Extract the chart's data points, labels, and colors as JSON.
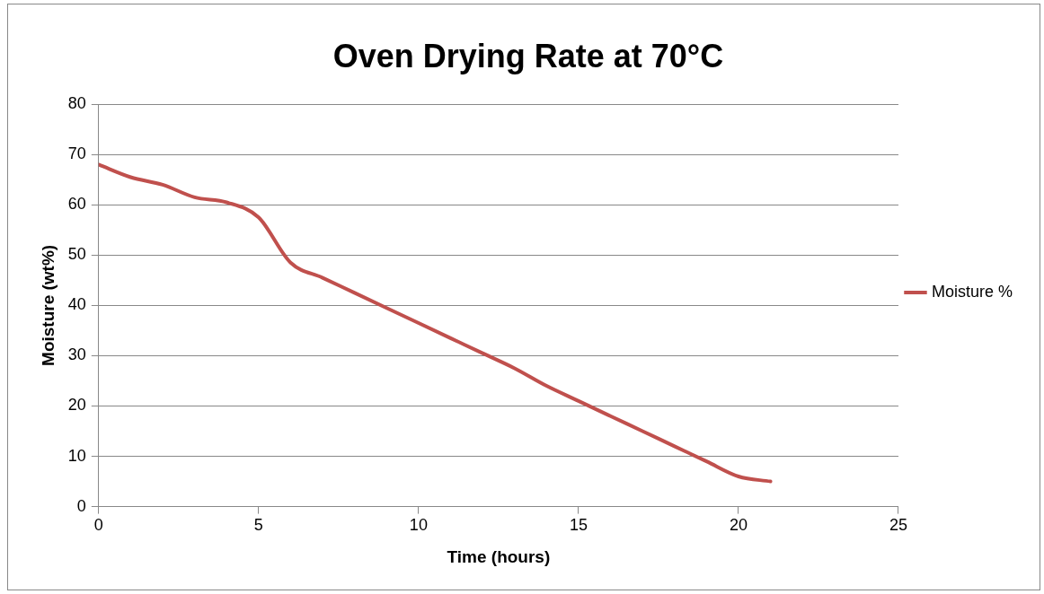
{
  "chart_data": {
    "type": "line",
    "title": "Oven Drying Rate at 70°C",
    "xlabel": "Time (hours)",
    "ylabel": "Moisture (wt%)",
    "xlim": [
      0,
      25
    ],
    "xticks": [
      0,
      5,
      10,
      15,
      20,
      25
    ],
    "ylim": [
      0,
      80
    ],
    "yticks": [
      0,
      10,
      20,
      30,
      40,
      50,
      60,
      70,
      80
    ],
    "grid": "y",
    "legend": "right",
    "marker": "none",
    "series": [
      {
        "name": "Moisture %",
        "color": "#c0504d",
        "x": [
          0,
          1,
          2,
          3,
          4,
          5,
          6,
          7,
          8,
          9,
          10,
          11,
          12,
          13,
          14,
          15,
          16,
          17,
          18,
          19,
          20,
          21
        ],
        "values": [
          68,
          65.5,
          64,
          61.5,
          60.5,
          57.5,
          48.5,
          45.5,
          42.5,
          39.5,
          36.5,
          33.5,
          30.5,
          27.5,
          24,
          21,
          18,
          15,
          12,
          9,
          6,
          5
        ]
      }
    ]
  }
}
